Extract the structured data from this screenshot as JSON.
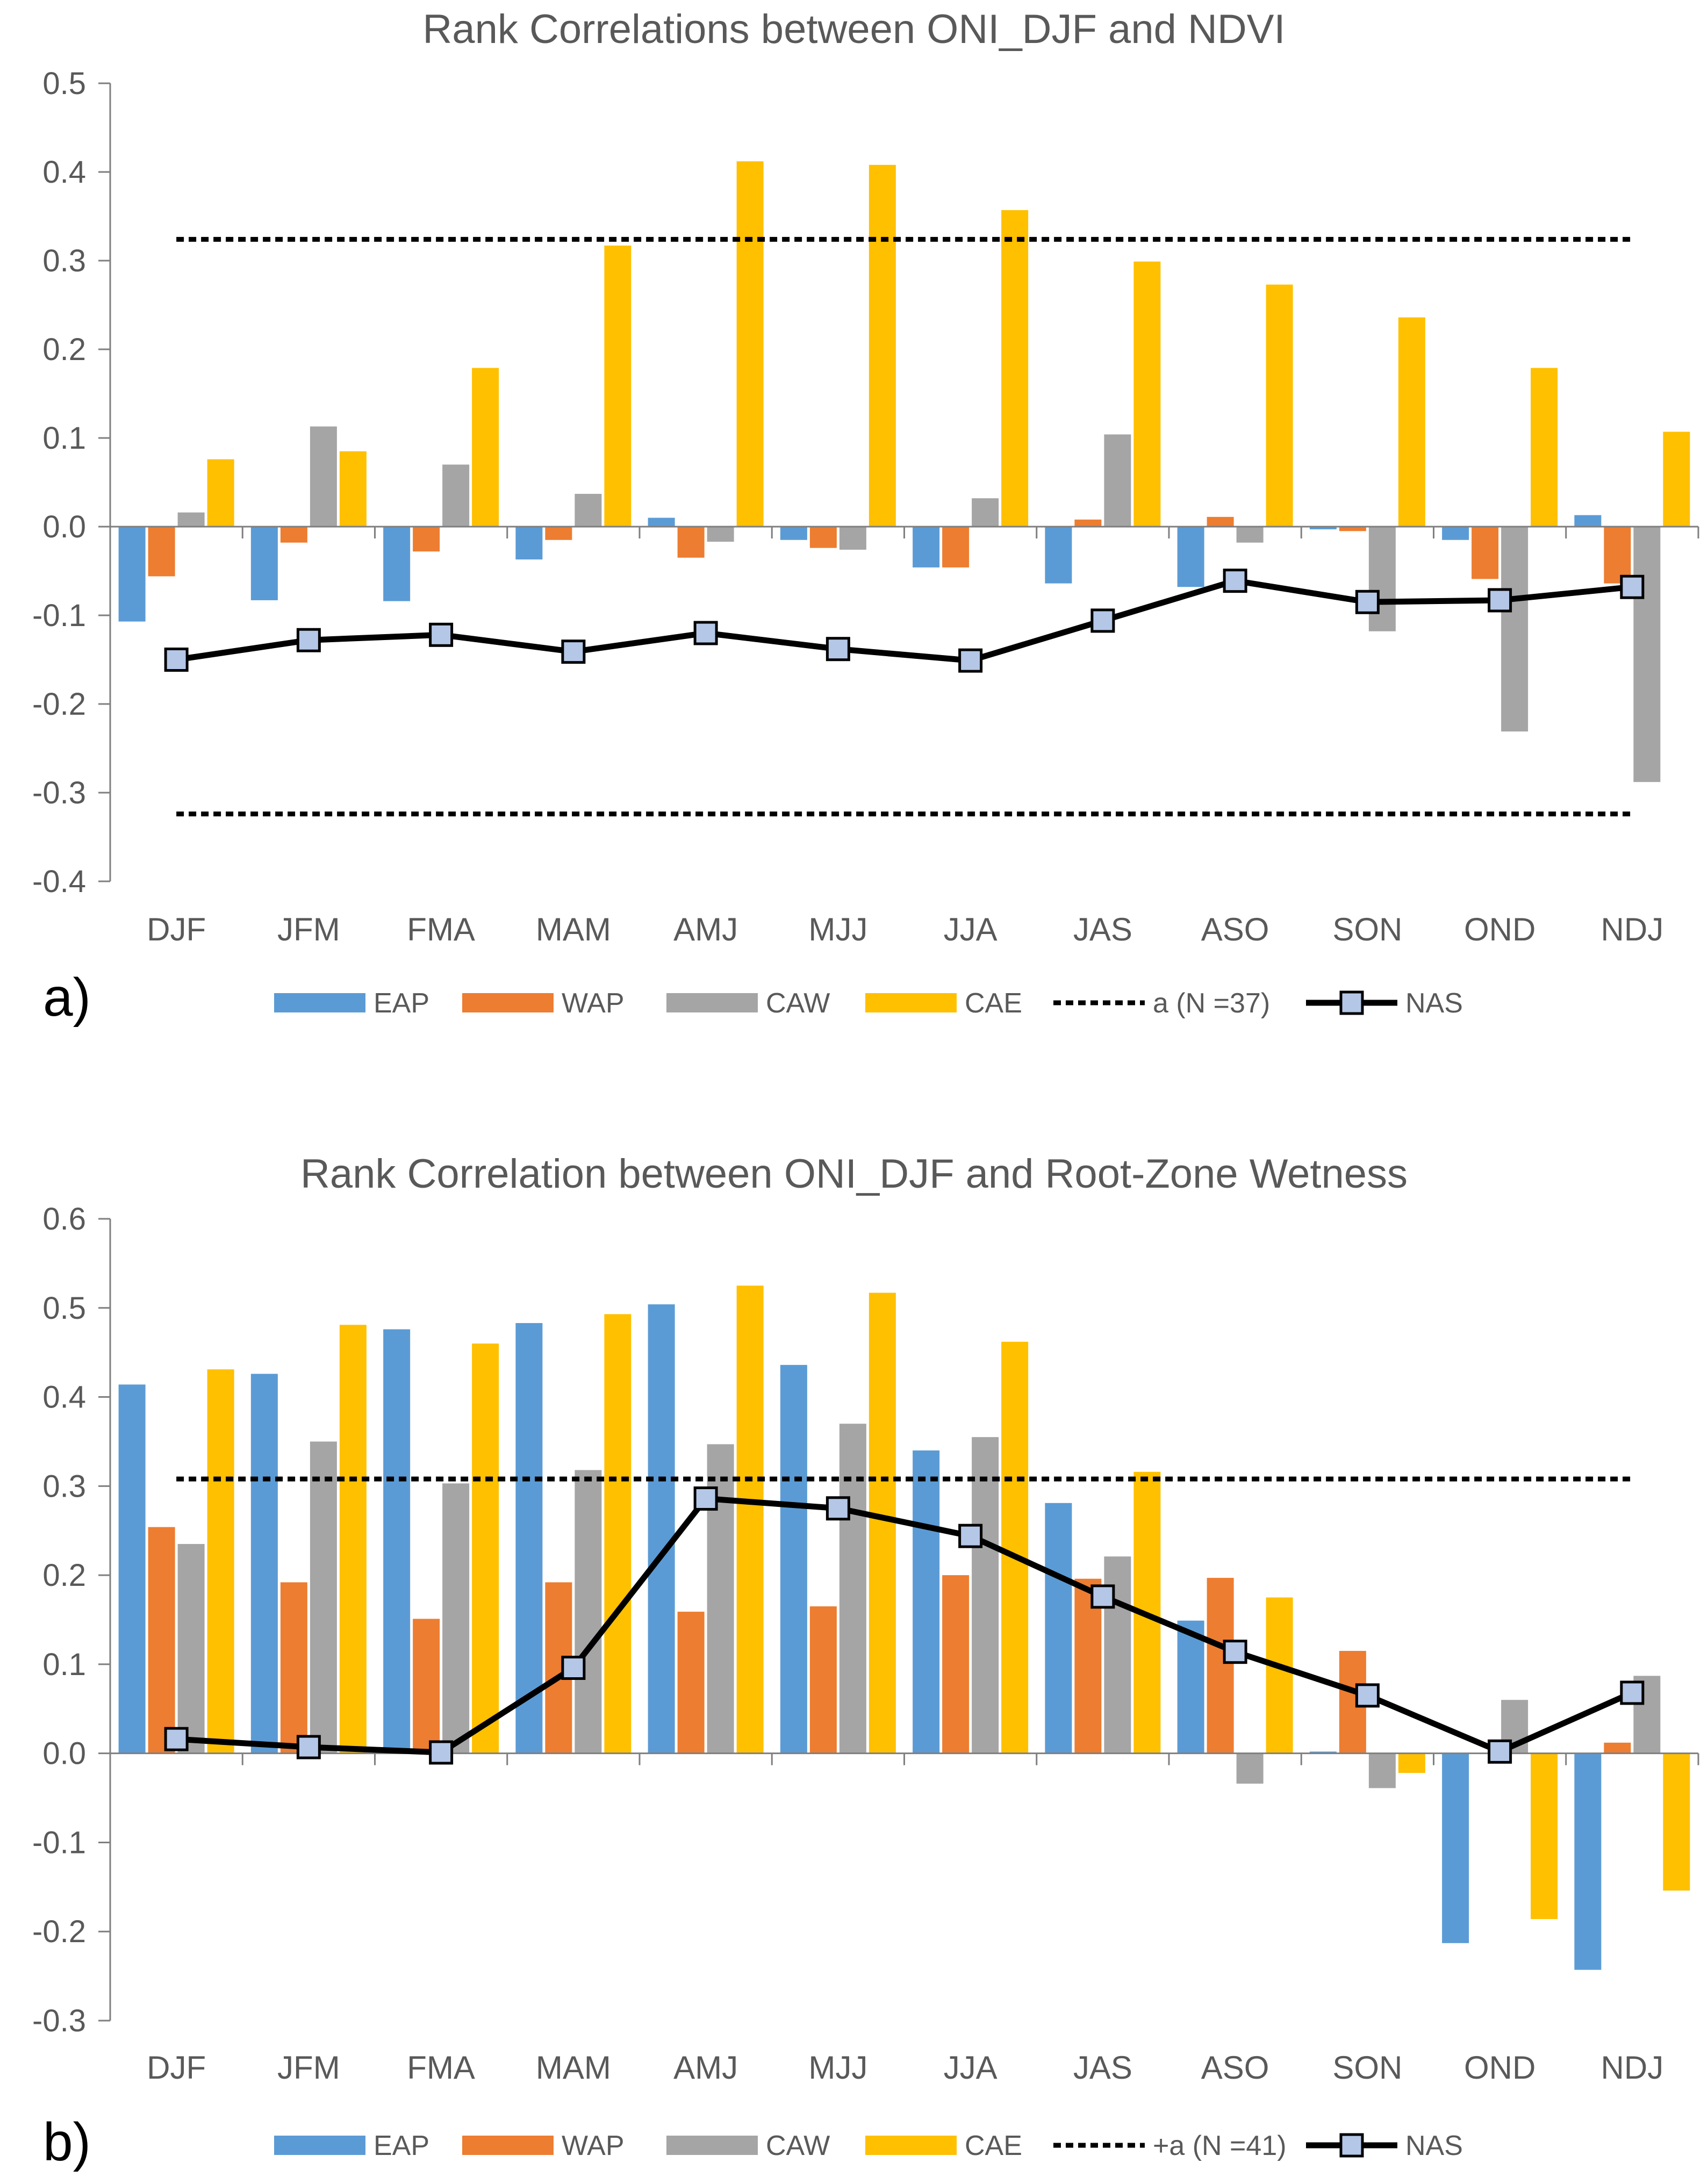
{
  "colors": {
    "EAP": "#5B9BD5",
    "WAP": "#ED7D31",
    "CAW": "#A5A5A5",
    "CAE": "#FFC000",
    "NAS_line": "#000000",
    "NAS_marker": "#B4C7E7",
    "axis": "#7F7F7F",
    "text": "#595959"
  },
  "chart_data": [
    {
      "type": "bar",
      "panel_label": "a)",
      "title": "Rank Correlations between ONI_DJF and NDVI",
      "xlabel": "",
      "ylabel": "",
      "ylim": [
        -0.4,
        0.5
      ],
      "yticks": [
        "0.5",
        "0.4",
        "0.3",
        "0.2",
        "0.1",
        "0.0",
        "-0.1",
        "-0.2",
        "-0.3",
        "-0.4"
      ],
      "ytick_values": [
        0.5,
        0.4,
        0.3,
        0.2,
        0.1,
        0.0,
        -0.1,
        -0.2,
        -0.3,
        -0.4
      ],
      "categories": [
        "DJF",
        "JFM",
        "FMA",
        "MAM",
        "AMJ",
        "MJJ",
        "JJA",
        "JAS",
        "ASO",
        "SON",
        "OND",
        "NDJ"
      ],
      "series": [
        {
          "name": "EAP",
          "values": [
            -0.107,
            -0.083,
            -0.084,
            -0.037,
            0.01,
            -0.015,
            -0.046,
            -0.064,
            -0.068,
            -0.003,
            -0.015,
            0.013
          ]
        },
        {
          "name": "WAP",
          "values": [
            -0.056,
            -0.018,
            -0.028,
            -0.015,
            -0.035,
            -0.024,
            -0.046,
            0.008,
            0.011,
            -0.005,
            -0.059,
            -0.064
          ]
        },
        {
          "name": "CAW",
          "values": [
            0.016,
            0.113,
            0.07,
            0.037,
            -0.017,
            -0.026,
            0.032,
            0.104,
            -0.018,
            -0.118,
            -0.231,
            -0.288
          ]
        },
        {
          "name": "CAE",
          "values": [
            0.076,
            0.085,
            0.179,
            0.317,
            0.412,
            0.408,
            0.357,
            0.299,
            0.273,
            0.236,
            0.179,
            0.107
          ]
        }
      ],
      "line": {
        "name": "NAS",
        "values": [
          -0.15,
          -0.128,
          -0.122,
          -0.141,
          -0.12,
          -0.138,
          -0.151,
          -0.106,
          -0.061,
          -0.085,
          -0.083,
          -0.068
        ]
      },
      "threshold": {
        "name": "a (N =37)",
        "values": [
          0.324,
          -0.324
        ]
      },
      "legend": [
        "EAP",
        "WAP",
        "CAW",
        "CAE",
        "a (N =37)",
        "NAS"
      ]
    },
    {
      "type": "bar",
      "panel_label": "b)",
      "title": "Rank Correlation between ONI_DJF and Root-Zone Wetness",
      "xlabel": "",
      "ylabel": "",
      "ylim": [
        -0.3,
        0.6
      ],
      "yticks": [
        "0.6",
        "0.5",
        "0.4",
        "0.3",
        "0.2",
        "0.1",
        "0.0",
        "-0.1",
        "-0.2",
        "-0.3"
      ],
      "ytick_values": [
        0.6,
        0.5,
        0.4,
        0.3,
        0.2,
        0.1,
        0.0,
        -0.1,
        -0.2,
        -0.3
      ],
      "categories": [
        "DJF",
        "JFM",
        "FMA",
        "MAM",
        "AMJ",
        "MJJ",
        "JJA",
        "JAS",
        "ASO",
        "SON",
        "OND",
        "NDJ"
      ],
      "series": [
        {
          "name": "EAP",
          "values": [
            0.414,
            0.426,
            0.476,
            0.483,
            0.504,
            0.436,
            0.34,
            0.281,
            0.149,
            0.002,
            -0.213,
            -0.243
          ]
        },
        {
          "name": "WAP",
          "values": [
            0.254,
            0.192,
            0.151,
            0.192,
            0.159,
            0.165,
            0.2,
            0.196,
            0.197,
            0.115,
            0.0,
            0.012
          ]
        },
        {
          "name": "CAW",
          "values": [
            0.235,
            0.35,
            0.303,
            0.318,
            0.347,
            0.37,
            0.355,
            0.221,
            -0.034,
            -0.039,
            0.06,
            0.087
          ]
        },
        {
          "name": "CAE",
          "values": [
            0.431,
            0.481,
            0.46,
            0.493,
            0.525,
            0.517,
            0.462,
            0.316,
            0.175,
            -0.022,
            -0.186,
            -0.154
          ]
        }
      ],
      "line": {
        "name": "NAS",
        "values": [
          0.016,
          0.007,
          0.001,
          0.096,
          0.286,
          0.275,
          0.244,
          0.176,
          0.114,
          0.065,
          0.002,
          0.068
        ]
      },
      "threshold": {
        "name": "+a (N =41)",
        "values": [
          0.308
        ]
      },
      "legend": [
        "EAP",
        "WAP",
        "CAW",
        "CAE",
        "+a (N =41)",
        "NAS"
      ]
    }
  ]
}
